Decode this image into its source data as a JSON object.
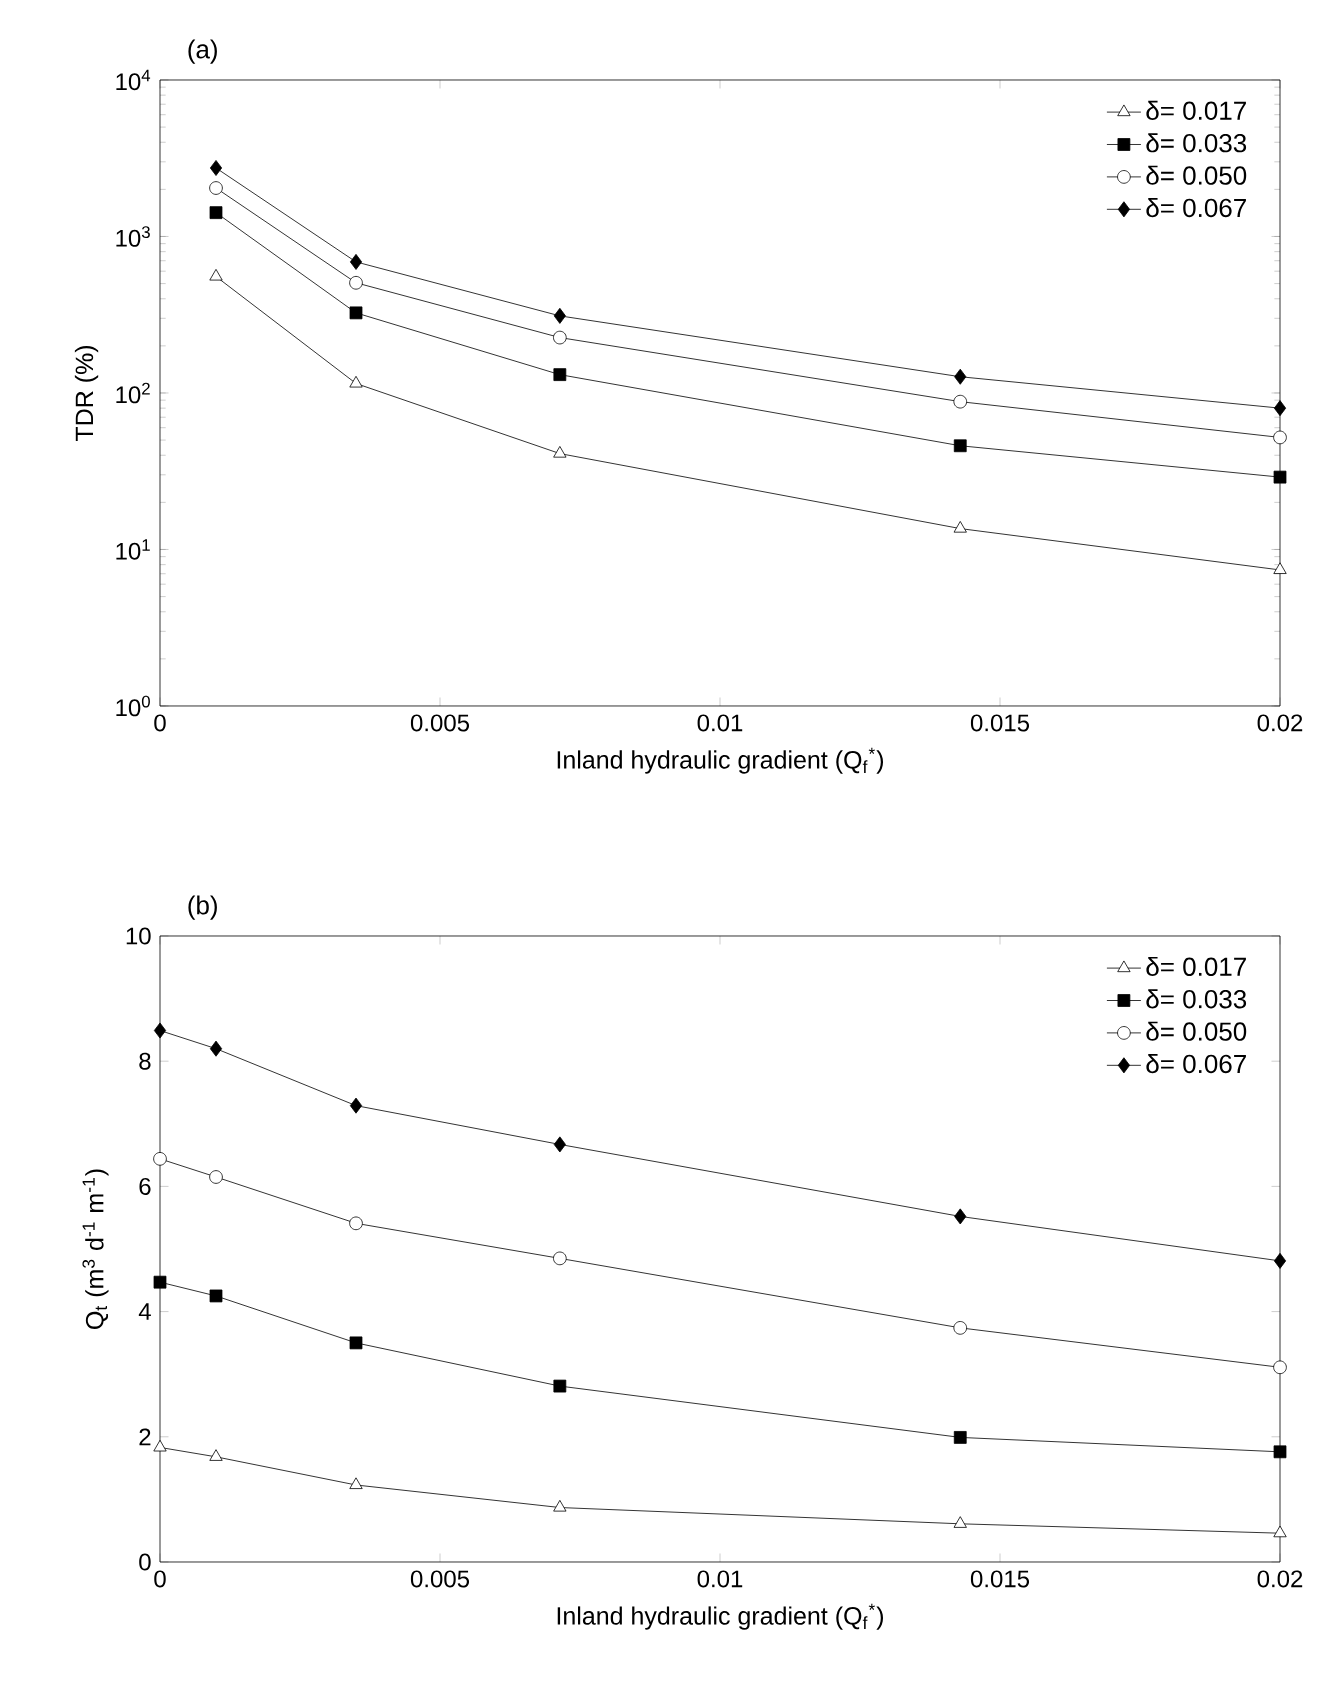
{
  "chart_data": [
    {
      "type": "line",
      "title": "(a)",
      "xlabel": "Inland hydraulic gradient (Q$_{f}$$^{*}$)",
      "ylabel": "TDR (%)",
      "log": "y",
      "xlim": [
        0,
        0.02
      ],
      "xticks": [
        0,
        0.005,
        0.01,
        0.015,
        0.02
      ],
      "ylim": [
        1,
        10000
      ],
      "yticks": [
        {
          "value": 1,
          "label": "10$^{0}$"
        },
        {
          "value": 10,
          "label": "10$^{1}$"
        },
        {
          "value": 100,
          "label": "10$^{2}$"
        },
        {
          "value": 1000,
          "label": "10$^{3}$"
        },
        {
          "value": 10000,
          "label": "10$^{4}$"
        }
      ],
      "legend": "top right",
      "grid": false,
      "line_style": "solid",
      "x": [
        0.001,
        0.0035,
        0.00714,
        0.01429,
        0.02
      ],
      "series": [
        {
          "name": "δ= 0.017",
          "color": "#000000",
          "marker": "triangle",
          "values": [
            555,
            115,
            41,
            13.6,
            7.4
          ]
        },
        {
          "name": "δ= 0.033",
          "color": "#000000",
          "marker": "square",
          "values": [
            1420,
            325,
            131,
            46,
            29
          ]
        },
        {
          "name": "δ= 0.050",
          "color": "#000000",
          "marker": "circle",
          "values": [
            2040,
            506,
            226,
            88,
            52
          ]
        },
        {
          "name": "δ= 0.067",
          "color": "#000000",
          "marker": "diamond",
          "values": [
            2740,
            688,
            311,
            127,
            80
          ]
        }
      ]
    },
    {
      "type": "line",
      "title": "(b)",
      "xlabel": "Inland hydraulic gradient (Q$_{f}$$^{*}$)",
      "ylabel": "Q$_{t}$ (m$^{3}$ d$^{-1}$ m$^{-1}$)",
      "xlim": [
        0,
        0.02
      ],
      "xticks": [
        0,
        0.005,
        0.01,
        0.015,
        0.02
      ],
      "ylim": [
        0,
        10
      ],
      "yticks": [
        0,
        2,
        4,
        6,
        8,
        10
      ],
      "legend": "top right",
      "grid": false,
      "line_style": "solid",
      "x": [
        0,
        0.001,
        0.0035,
        0.00714,
        0.01429,
        0.02
      ],
      "series": [
        {
          "name": "δ= 0.017",
          "color": "#000000",
          "marker": "triangle",
          "values": [
            1.83,
            1.68,
            1.23,
            0.87,
            0.61,
            0.46
          ]
        },
        {
          "name": "δ= 0.033",
          "color": "#000000",
          "marker": "square",
          "values": [
            4.47,
            4.25,
            3.5,
            2.81,
            1.99,
            1.76
          ]
        },
        {
          "name": "δ= 0.050",
          "color": "#000000",
          "marker": "circle",
          "values": [
            6.44,
            6.15,
            5.41,
            4.85,
            3.74,
            3.11
          ]
        },
        {
          "name": "δ= 0.067",
          "color": "#000000",
          "marker": "diamond",
          "values": [
            8.49,
            8.2,
            7.29,
            6.67,
            5.52,
            4.81
          ]
        }
      ]
    }
  ]
}
